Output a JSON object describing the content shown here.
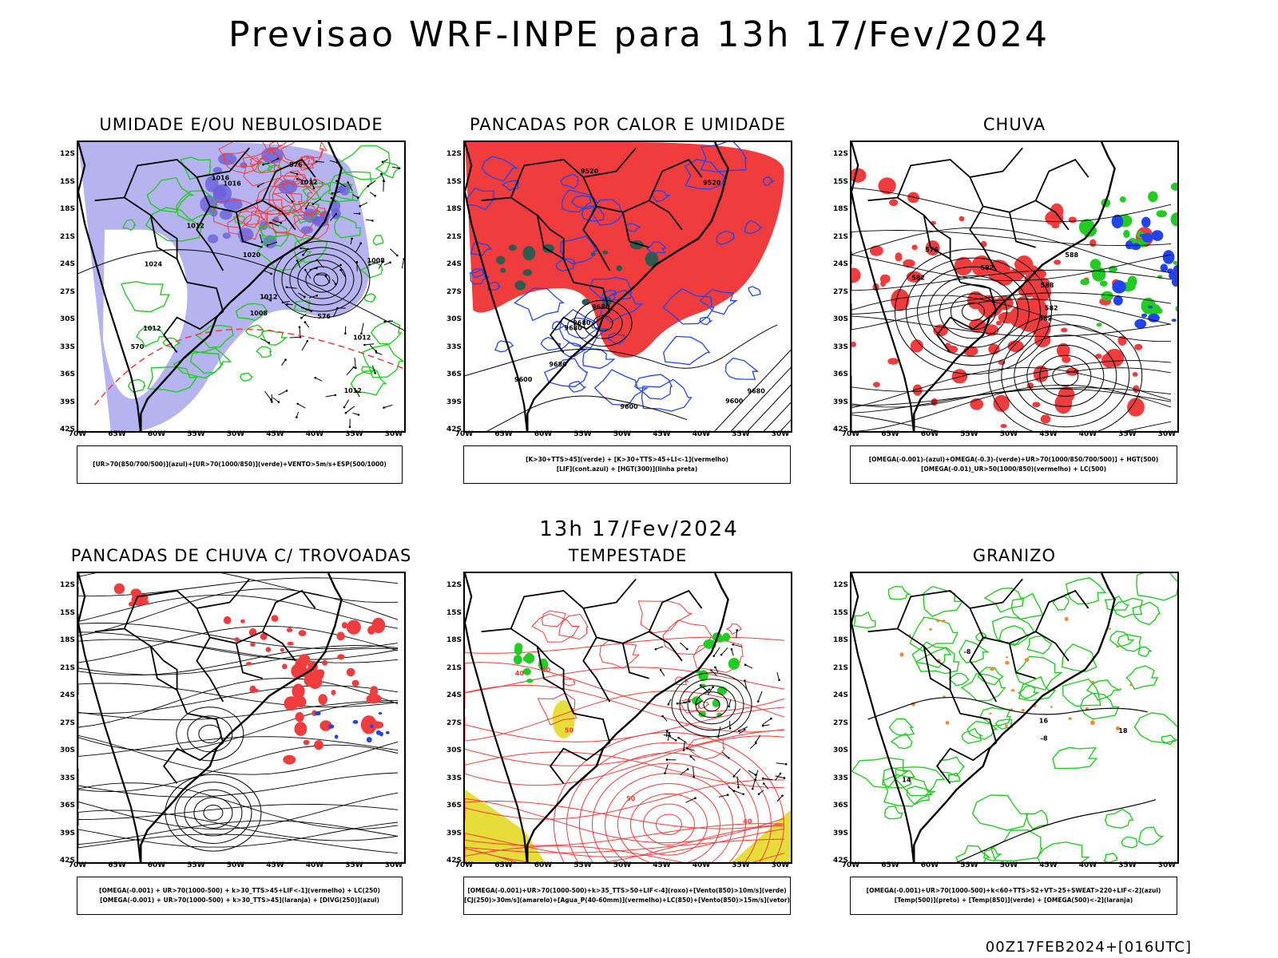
{
  "title": "Previsao WRF-INPE  para 13h 17/Fev/2024",
  "mid_title": "13h 17/Fev/2024",
  "footer": "00Z17FEB2024+[016UTC]",
  "lat_labels": [
    "12S",
    "15S",
    "18S",
    "21S",
    "24S",
    "27S",
    "30S",
    "33S",
    "36S",
    "39S",
    "42S"
  ],
  "lon_labels": [
    "70W",
    "65W",
    "60W",
    "55W",
    "50W",
    "45W",
    "40W",
    "35W",
    "30W"
  ],
  "colors": {
    "red": "#f03c3c",
    "green": "#22cc22",
    "blue": "#2244ee",
    "lavender": "#a9a6ee",
    "yellow": "#e6dc3a",
    "orange": "#f08a2a",
    "darkteal": "#2e5a50"
  },
  "panels": [
    {
      "title": "UMIDADE E/OU NEBULOSIDADE",
      "legend": [
        "[UR>70(850/700/500)](azul)+[UR>70(1000/850)](verde)+VENTO>5m/s+ESP(500/1000)"
      ],
      "contour_labels": [
        "1012",
        "1012",
        "1012",
        "1012",
        "1012",
        "1008",
        "1008",
        "1020",
        "1024",
        "1016",
        "1016",
        "1012",
        "576",
        "576",
        "570"
      ]
    },
    {
      "title": "PANCADAS POR CALOR E UMIDADE",
      "legend": [
        "[K>30+TTS>45](verde) + [K>30+TTS>45+LI<-1](vermelho)",
        "[LIF](cont.azul) + [HGT(300)](linha preta)"
      ],
      "contour_labels": [
        "9680",
        "9680",
        "9680",
        "9680",
        "9600",
        "9600",
        "9520",
        "9680",
        "9600",
        "9520"
      ]
    },
    {
      "title": "CHUVA",
      "legend": [
        "[OMEGA(-0.001)-(azul)+OMEGA(-0.3)-(verde)+UR>70(1000/850/700/500)] + HGT(500)",
        "[OMEGA(-0.01)_UR>50(1000/850)(vermelho) + LC(500)"
      ],
      "contour_labels": [
        "588",
        "582",
        "582",
        "588",
        "582",
        "576",
        "582"
      ]
    },
    {
      "title": "PANCADAS DE CHUVA C/ TROVOADAS",
      "legend": [
        "[OMEGA(-0.001) + UR>70(1000-500) + k>30_TTS>45+LIF<-1](vermelho) + LC(250)",
        "[OMEGA(-0.001) + UR>70(1000-500) + k>30_TTS>45](laranja) + [DIVG(250)](azul)"
      ],
      "contour_labels": []
    },
    {
      "title": "TEMPESTADE",
      "legend": [
        "[OMEGA(-0.001)+UR>70(1000-500)+k>35_TTS>50+LIF<-4](roxo)+[Vento(850)>10m/s](verde)",
        "[CJ(250)>30m/s](amarelo)+[Agua_P(40-60mm)](vermelho)+LC(850)+[Vento(850)>15m/s](vetor)"
      ],
      "contour_labels": [
        "40",
        "40",
        "50",
        "50",
        "40"
      ]
    },
    {
      "title": "GRANIZO",
      "legend": [
        "[OMEGA(-0.001)+UR>70(1000-500)+k<60+TTS>52+VT>25+SWEAT>220+LIF<-2](azul)",
        "[Temp(500)](preto) + [Temp(850)](verde) + [OMEGA(500)<-2](laranja)"
      ],
      "contour_labels": [
        "-8",
        "-8",
        "16",
        "18",
        "14"
      ]
    }
  ]
}
